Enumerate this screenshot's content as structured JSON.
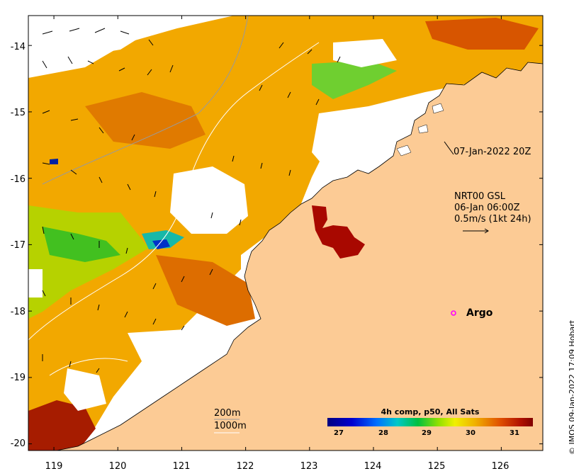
{
  "map": {
    "lon_range": [
      118.6,
      126.65
    ],
    "lat_range": [
      -20.1,
      -13.55
    ],
    "x_ticks": [
      119,
      120,
      121,
      122,
      123,
      124,
      125,
      126
    ],
    "y_ticks": [
      -14,
      -15,
      -16,
      -17,
      -18,
      -19,
      -20
    ]
  },
  "annotations": {
    "sst_time": "07-Jan-2022 20Z",
    "current_model": "NRT00 GSL",
    "current_time": "06-Jan 06:00Z",
    "current_scale": "0.5m/s (1kt 24h)",
    "argo_label": "Argo",
    "contour_200": "200m",
    "contour_1000": "1000m"
  },
  "colorbar": {
    "title": "4h comp, p50, All Sats",
    "ticks": [
      "27",
      "28",
      "29",
      "30",
      "31"
    ],
    "range": [
      26.6,
      31.6
    ]
  },
  "credit": "© IMOS 09-Jan-2022 17:09 Hobart",
  "colors": {
    "land": "#fccb95",
    "cloud": "#ffffff",
    "argo": "#ff00ff"
  }
}
